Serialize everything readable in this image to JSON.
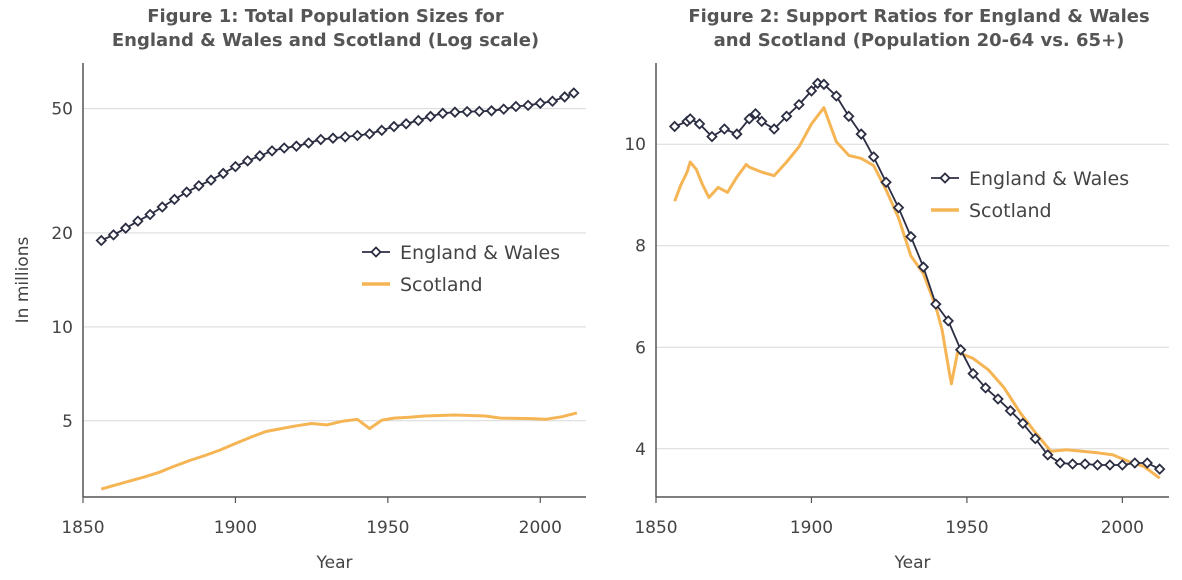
{
  "colors": {
    "england_wales": "#2b2d42",
    "scotland": "#f6b555",
    "grid": "#d9d9d9",
    "axis": "#555555"
  },
  "chart_data": [
    {
      "type": "line",
      "title": "Figure 1: Total Population Sizes for\nEngland & Wales and Scotland (Log scale)",
      "xlabel": "Year",
      "ylabel": "In millions",
      "yscale": "log",
      "xlim": [
        1850,
        2015
      ],
      "ylim": [
        2.85,
        70
      ],
      "xticks": [
        1850,
        1900,
        1950,
        2000
      ],
      "yticks": [
        5,
        10,
        20,
        50
      ],
      "grid": "horizontal",
      "legend_position": "center-right",
      "series": [
        {
          "name": "England & Wales",
          "marker": "diamond",
          "x": [
            1856,
            1860,
            1864,
            1868,
            1872,
            1876,
            1880,
            1884,
            1888,
            1892,
            1896,
            1900,
            1904,
            1908,
            1912,
            1916,
            1920,
            1924,
            1928,
            1932,
            1936,
            1940,
            1944,
            1948,
            1952,
            1956,
            1960,
            1964,
            1968,
            1972,
            1976,
            1980,
            1984,
            1988,
            1992,
            1996,
            2000,
            2004,
            2008,
            2011
          ],
          "values": [
            18.9,
            19.7,
            20.7,
            21.8,
            22.9,
            24.2,
            25.6,
            27.0,
            28.3,
            29.5,
            31.0,
            32.6,
            34.0,
            35.3,
            36.6,
            37.4,
            37.9,
            38.8,
            39.8,
            40.2,
            40.6,
            41.0,
            41.5,
            42.6,
            43.8,
            44.7,
            45.8,
            47.2,
            48.3,
            48.7,
            48.9,
            49.0,
            49.2,
            49.8,
            50.8,
            51.2,
            52.0,
            52.8,
            54.5,
            56.1
          ]
        },
        {
          "name": "Scotland",
          "marker": "none",
          "x": [
            1856,
            1860,
            1865,
            1870,
            1875,
            1880,
            1885,
            1890,
            1895,
            1900,
            1905,
            1910,
            1915,
            1920,
            1925,
            1930,
            1935,
            1940,
            1944,
            1948,
            1952,
            1957,
            1962,
            1967,
            1972,
            1977,
            1982,
            1987,
            1992,
            1997,
            2002,
            2007,
            2012
          ],
          "values": [
            3.02,
            3.1,
            3.2,
            3.3,
            3.42,
            3.58,
            3.73,
            3.87,
            4.03,
            4.23,
            4.43,
            4.62,
            4.72,
            4.82,
            4.9,
            4.85,
            4.98,
            5.05,
            4.72,
            5.02,
            5.1,
            5.13,
            5.18,
            5.2,
            5.22,
            5.2,
            5.18,
            5.1,
            5.09,
            5.08,
            5.06,
            5.15,
            5.3
          ]
        }
      ]
    },
    {
      "type": "line",
      "title": "Figure 2: Support Ratios for England & Wales\nand Scotland (Population 20-64 vs. 65+)",
      "xlabel": "Year",
      "ylabel": "",
      "xlim": [
        1850,
        2015
      ],
      "ylim": [
        3.05,
        11.6
      ],
      "xticks": [
        1850,
        1900,
        1950,
        2000
      ],
      "yticks": [
        4,
        6,
        8,
        10
      ],
      "grid": "horizontal",
      "legend_position": "top-right",
      "series": [
        {
          "name": "England & Wales",
          "marker": "diamond",
          "x": [
            1856,
            1860,
            1861,
            1864,
            1868,
            1872,
            1876,
            1880,
            1882,
            1884,
            1888,
            1892,
            1896,
            1900,
            1902,
            1904,
            1908,
            1912,
            1916,
            1920,
            1924,
            1928,
            1932,
            1936,
            1940,
            1944,
            1948,
            1952,
            1956,
            1960,
            1964,
            1968,
            1972,
            1976,
            1980,
            1984,
            1988,
            1992,
            1996,
            2000,
            2004,
            2008,
            2012
          ],
          "values": [
            10.35,
            10.45,
            10.5,
            10.4,
            10.15,
            10.3,
            10.2,
            10.5,
            10.6,
            10.45,
            10.3,
            10.55,
            10.78,
            11.05,
            11.2,
            11.18,
            10.95,
            10.55,
            10.2,
            9.75,
            9.25,
            8.75,
            8.18,
            7.58,
            6.85,
            6.52,
            5.95,
            5.48,
            5.2,
            4.98,
            4.75,
            4.5,
            4.2,
            3.88,
            3.72,
            3.7,
            3.7,
            3.68,
            3.68,
            3.68,
            3.72,
            3.72,
            3.6
          ]
        },
        {
          "name": "Scotland",
          "marker": "none",
          "x": [
            1856,
            1858,
            1860,
            1861,
            1863,
            1865,
            1867,
            1870,
            1873,
            1876,
            1879,
            1880,
            1884,
            1888,
            1892,
            1896,
            1900,
            1904,
            1908,
            1912,
            1916,
            1920,
            1924,
            1928,
            1932,
            1936,
            1940,
            1942,
            1944,
            1945,
            1947,
            1952,
            1957,
            1962,
            1967,
            1972,
            1977,
            1982,
            1987,
            1992,
            1997,
            2002,
            2007,
            2012
          ],
          "values": [
            8.88,
            9.2,
            9.45,
            9.65,
            9.5,
            9.2,
            8.95,
            9.15,
            9.05,
            9.35,
            9.6,
            9.55,
            9.45,
            9.38,
            9.65,
            9.95,
            10.4,
            10.72,
            10.05,
            9.78,
            9.72,
            9.58,
            9.1,
            8.55,
            7.8,
            7.45,
            6.8,
            6.35,
            5.62,
            5.28,
            5.9,
            5.78,
            5.55,
            5.2,
            4.72,
            4.32,
            3.95,
            3.98,
            3.95,
            3.92,
            3.88,
            3.75,
            3.65,
            3.42
          ]
        }
      ]
    }
  ]
}
